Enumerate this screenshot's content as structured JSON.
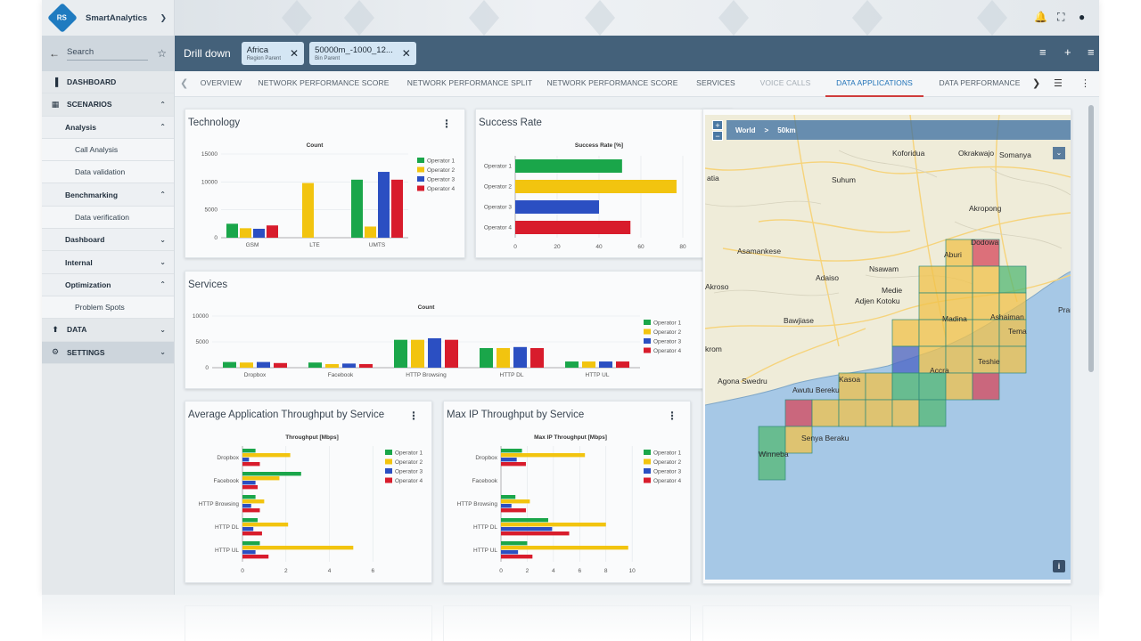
{
  "app": {
    "name": "SmartAnalytics",
    "colors": {
      "header": "#44617a",
      "accent": "#1f72b8",
      "active_tab_underline": "#cf3c3c"
    }
  },
  "search": {
    "label": "Search"
  },
  "sidebar": {
    "items": [
      {
        "label": "DASHBOARD",
        "level": "top",
        "icon": "bar-chart-icon",
        "caret": ""
      },
      {
        "label": "SCENARIOS",
        "level": "top",
        "icon": "grid-icon",
        "caret": "up"
      },
      {
        "label": "Analysis",
        "level": "l2",
        "caret": "up"
      },
      {
        "label": "Call Analysis",
        "level": "l3",
        "caret": ""
      },
      {
        "label": "Data validation",
        "level": "l3",
        "caret": ""
      },
      {
        "label": "Benchmarking",
        "level": "l2",
        "caret": "up"
      },
      {
        "label": "Data verification",
        "level": "l3",
        "caret": ""
      },
      {
        "label": "Dashboard",
        "level": "l2",
        "caret": "down"
      },
      {
        "label": "Internal",
        "level": "l2",
        "caret": "down"
      },
      {
        "label": "Optimization",
        "level": "l2",
        "caret": "up"
      },
      {
        "label": "Problem Spots",
        "level": "l3",
        "caret": ""
      },
      {
        "label": "DATA",
        "level": "top",
        "icon": "upload-icon",
        "caret": "down"
      },
      {
        "label": "SETTINGS",
        "level": "top",
        "icon": "gear-icon",
        "caret": "down",
        "active": true
      }
    ]
  },
  "drill": {
    "title": "Drill down",
    "chips": [
      {
        "main": "Africa",
        "sub": "Region Parent",
        "selected": true
      },
      {
        "main": "50000m_-1000_12...",
        "sub": "Bin Parent",
        "selected": true
      }
    ]
  },
  "tabs": [
    {
      "label": "OVERVIEW"
    },
    {
      "label": "NETWORK PERFORMANCE SCORE"
    },
    {
      "label": "NETWORK PERFORMANCE SPLIT"
    },
    {
      "label": "NETWORK PERFORMANCE SCORE"
    },
    {
      "label": "SERVICES"
    },
    {
      "label": "VOICE CALLS",
      "disabled": true
    },
    {
      "label": "DATA APPLICATIONS",
      "active": true
    },
    {
      "label": "DATA PERFORMANCE"
    }
  ],
  "operators": [
    "Operator 1",
    "Operator 2",
    "Operator 3",
    "Operator 4"
  ],
  "operator_colors": [
    "#1aa64a",
    "#f2c40f",
    "#2b4fc2",
    "#d81c2c"
  ],
  "cards": {
    "technology": {
      "title": "Technology"
    },
    "success": {
      "title": "Success Rate"
    },
    "services": {
      "title": "Services"
    },
    "avg_tp": {
      "title": "Average Application Throughput by Service"
    },
    "max_ip": {
      "title": "Max IP Throughput by Service"
    }
  },
  "chart_data": [
    {
      "id": "technology",
      "type": "bar",
      "title": "Count",
      "categories": [
        "GSM",
        "LTE",
        "UMTS"
      ],
      "ylim": [
        0,
        15000
      ],
      "yticks": [
        0,
        5000,
        10000,
        15000
      ],
      "legend": "right",
      "series": [
        {
          "name": "Operator 1",
          "values": [
            2500,
            0,
            10400
          ]
        },
        {
          "name": "Operator 2",
          "values": [
            1700,
            9800,
            2000
          ]
        },
        {
          "name": "Operator 3",
          "values": [
            1600,
            0,
            11800
          ]
        },
        {
          "name": "Operator 4",
          "values": [
            2200,
            0,
            10400
          ]
        }
      ]
    },
    {
      "id": "success",
      "type": "bar",
      "orientation": "horizontal",
      "title": "Success Rate [%]",
      "categories": [
        "Operator 1",
        "Operator 2",
        "Operator 3",
        "Operator 4"
      ],
      "values": [
        51,
        77,
        40,
        55
      ],
      "xlim": [
        0,
        80
      ],
      "xticks": [
        0,
        20,
        40,
        60,
        80
      ]
    },
    {
      "id": "services",
      "type": "bar",
      "title": "Count",
      "categories": [
        "Dropbox",
        "Facebook",
        "HTTP Browsing",
        "HTTP DL",
        "HTTP UL"
      ],
      "ylim": [
        0,
        10000
      ],
      "yticks": [
        0,
        5000,
        10000
      ],
      "legend": "right",
      "series": [
        {
          "name": "Operator 1",
          "values": [
            1100,
            1000,
            5400,
            3800,
            1200
          ]
        },
        {
          "name": "Operator 2",
          "values": [
            1000,
            700,
            5400,
            3800,
            1200
          ]
        },
        {
          "name": "Operator 3",
          "values": [
            1100,
            800,
            5700,
            4000,
            1200
          ]
        },
        {
          "name": "Operator 4",
          "values": [
            900,
            700,
            5400,
            3800,
            1200
          ]
        }
      ]
    },
    {
      "id": "avg_tp",
      "type": "bar",
      "orientation": "horizontal",
      "title": "Throughput [Mbps]",
      "categories": [
        "Dropbox",
        "Facebook",
        "HTTP Browsing",
        "HTTP DL",
        "HTTP UL"
      ],
      "xlim": [
        0,
        6.4
      ],
      "xticks": [
        0,
        2,
        4,
        6
      ],
      "legend": "right",
      "series": [
        {
          "name": "Operator 1",
          "values": [
            0.6,
            2.7,
            0.6,
            0.7,
            0.8
          ]
        },
        {
          "name": "Operator 2",
          "values": [
            2.2,
            1.7,
            1.0,
            2.1,
            5.1
          ]
        },
        {
          "name": "Operator 3",
          "values": [
            0.3,
            0.6,
            0.4,
            0.5,
            0.6
          ]
        },
        {
          "name": "Operator 4",
          "values": [
            0.8,
            0.7,
            0.8,
            0.9,
            1.2
          ]
        }
      ]
    },
    {
      "id": "max_ip",
      "type": "bar",
      "orientation": "horizontal",
      "title": "Max IP Throughput [Mbps]",
      "categories": [
        "Dropbox",
        "Facebook",
        "HTTP Browsing",
        "HTTP DL",
        "HTTP UL"
      ],
      "xlim": [
        0,
        10.6
      ],
      "xticks": [
        0,
        2,
        4,
        6,
        8,
        10
      ],
      "legend": "right",
      "series": [
        {
          "name": "Operator 1",
          "values": [
            1.6,
            0,
            1.1,
            3.6,
            2.0
          ]
        },
        {
          "name": "Operator 2",
          "values": [
            6.4,
            0,
            2.2,
            8.0,
            9.7
          ]
        },
        {
          "name": "Operator 3",
          "values": [
            1.2,
            0,
            0.8,
            3.9,
            1.3
          ]
        },
        {
          "name": "Operator 4",
          "values": [
            1.9,
            0,
            1.9,
            5.2,
            2.4
          ]
        }
      ]
    }
  ],
  "map": {
    "breadcrumb": [
      "World",
      "50km"
    ],
    "places": [
      "Koforidua",
      "Okrakwajo",
      "Somanya",
      "atia",
      "Suhum",
      "Akropong",
      "Dodowa",
      "Asamankese",
      "Aburi",
      "Adaiso",
      "Nsawam",
      "Akroso",
      "Medie",
      "Adjen Kotoku",
      "Pramprа",
      "Bawjiase",
      "Madina",
      "Ashaiman",
      "Tema",
      "krom",
      "Teshie",
      "Accra",
      "Kasoa",
      "Agona Swedru",
      "Awutu Bereku",
      "Senya Beraku",
      "Winneba"
    ],
    "colors": {
      "land": "#efecd9",
      "sea": "#a6c8e6",
      "good": "#53b873",
      "mid": "#f0c24a",
      "bad": "#d5475a",
      "blue": "#4a63c4"
    }
  }
}
